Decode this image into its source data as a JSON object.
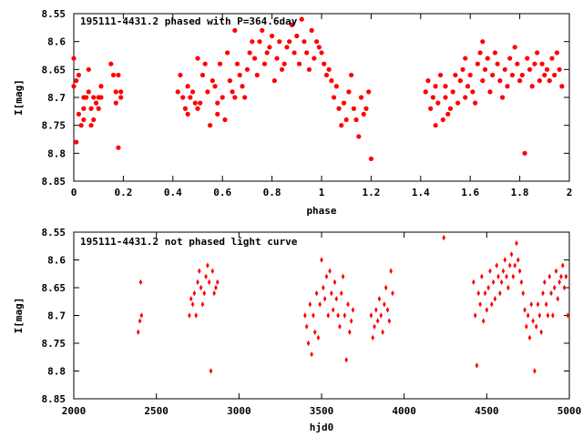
{
  "chart_data": [
    {
      "type": "scatter",
      "title": "195111-4431.2 phased with P=364.6day",
      "xlabel": "phase",
      "ylabel": "I[mag]",
      "xlim": [
        0,
        2
      ],
      "ylim": [
        8.55,
        8.85
      ],
      "y_inverted": true,
      "grid": false,
      "legend": "none",
      "marker_color": "#ff0000",
      "x_ticks": [
        "0",
        "0.2",
        "0.4",
        "0.6",
        "0.8",
        "1",
        "1.2",
        "1.4",
        "1.6",
        "1.8",
        "2"
      ],
      "y_ticks": [
        "8.55",
        "8.6",
        "8.65",
        "8.7",
        "8.75",
        "8.8",
        "8.85"
      ],
      "series": [
        {
          "x": [
            0.0,
            0.0,
            0.01,
            0.01,
            0.02,
            0.02,
            0.03,
            0.04,
            0.04,
            0.04,
            0.05,
            0.06,
            0.06,
            0.07,
            0.07,
            0.08,
            0.08,
            0.09,
            0.1,
            0.1,
            0.11,
            0.11,
            0.15,
            0.16,
            0.17,
            0.17,
            0.18,
            0.18,
            0.19,
            0.19,
            0.42,
            0.43,
            0.44,
            0.45,
            0.46,
            0.46,
            0.47,
            0.48,
            0.49,
            0.5,
            0.5,
            0.51,
            0.52,
            0.53,
            0.54,
            0.55,
            0.56,
            0.57,
            0.58,
            0.58,
            0.59,
            0.6,
            0.61,
            0.62,
            0.63,
            0.64,
            0.65,
            0.65,
            0.66,
            0.67,
            0.68,
            0.69,
            0.7,
            0.71,
            0.72,
            0.73,
            0.74,
            0.75,
            0.76,
            0.77,
            0.78,
            0.79,
            0.8,
            0.81,
            0.82,
            0.83,
            0.84,
            0.85,
            0.86,
            0.87,
            0.88,
            0.89,
            0.9,
            0.91,
            0.92,
            0.93,
            0.94,
            0.95,
            0.96,
            0.97,
            0.98,
            0.99,
            1.0,
            1.01,
            1.02,
            1.03,
            1.04,
            1.05,
            1.06,
            1.07,
            1.08,
            1.09,
            1.1,
            1.11,
            1.12,
            1.13,
            1.14,
            1.15,
            1.16,
            1.17,
            1.18,
            1.19,
            1.2,
            1.42,
            1.43,
            1.44,
            1.45,
            1.46,
            1.46,
            1.47,
            1.48,
            1.49,
            1.5,
            1.5,
            1.51,
            1.52,
            1.53,
            1.54,
            1.55,
            1.56,
            1.57,
            1.58,
            1.58,
            1.59,
            1.6,
            1.61,
            1.62,
            1.63,
            1.64,
            1.65,
            1.65,
            1.66,
            1.67,
            1.68,
            1.69,
            1.7,
            1.71,
            1.72,
            1.73,
            1.74,
            1.75,
            1.76,
            1.77,
            1.78,
            1.79,
            1.8,
            1.81,
            1.82,
            1.83,
            1.84,
            1.85,
            1.86,
            1.87,
            1.88,
            1.89,
            1.9,
            1.91,
            1.92,
            1.93,
            1.94,
            1.95,
            1.96,
            1.97
          ],
          "y": [
            8.68,
            8.63,
            8.67,
            8.78,
            8.73,
            8.66,
            8.75,
            8.7,
            8.72,
            8.74,
            8.7,
            8.65,
            8.69,
            8.72,
            8.75,
            8.7,
            8.74,
            8.71,
            8.7,
            8.72,
            8.68,
            8.7,
            8.64,
            8.66,
            8.69,
            8.71,
            8.79,
            8.66,
            8.7,
            8.69,
            8.69,
            8.66,
            8.7,
            8.72,
            8.73,
            8.68,
            8.7,
            8.69,
            8.71,
            8.63,
            8.72,
            8.71,
            8.66,
            8.64,
            8.69,
            8.75,
            8.67,
            8.68,
            8.71,
            8.73,
            8.64,
            8.7,
            8.74,
            8.62,
            8.67,
            8.69,
            8.7,
            8.58,
            8.64,
            8.66,
            8.68,
            8.7,
            8.65,
            8.62,
            8.6,
            8.63,
            8.66,
            8.6,
            8.58,
            8.64,
            8.62,
            8.61,
            8.59,
            8.67,
            8.63,
            8.6,
            8.65,
            8.64,
            8.61,
            8.6,
            8.57,
            8.62,
            8.59,
            8.64,
            8.56,
            8.6,
            8.62,
            8.65,
            8.58,
            8.63,
            8.6,
            8.61,
            8.62,
            8.64,
            8.66,
            8.65,
            8.67,
            8.7,
            8.68,
            8.72,
            8.75,
            8.71,
            8.74,
            8.69,
            8.66,
            8.72,
            8.74,
            8.77,
            8.7,
            8.73,
            8.72,
            8.69,
            8.81,
            8.69,
            8.67,
            8.72,
            8.7,
            8.75,
            8.68,
            8.71,
            8.66,
            8.74,
            8.7,
            8.68,
            8.73,
            8.72,
            8.69,
            8.66,
            8.71,
            8.67,
            8.65,
            8.7,
            8.63,
            8.68,
            8.66,
            8.69,
            8.71,
            8.64,
            8.62,
            8.67,
            8.6,
            8.65,
            8.63,
            8.69,
            8.66,
            8.62,
            8.64,
            8.67,
            8.7,
            8.65,
            8.68,
            8.63,
            8.66,
            8.61,
            8.64,
            8.67,
            8.66,
            8.8,
            8.63,
            8.65,
            8.68,
            8.64,
            8.62,
            8.67,
            8.64,
            8.66,
            8.65,
            8.67,
            8.63,
            8.66,
            8.62,
            8.65,
            8.68
          ]
        }
      ]
    },
    {
      "type": "scatter",
      "title": "195111-4431.2 not phased light curve",
      "xlabel": "hjd0",
      "ylabel": "I[mag]",
      "xlim": [
        2000,
        5000
      ],
      "ylim": [
        8.55,
        8.85
      ],
      "y_inverted": true,
      "grid": false,
      "legend": "none",
      "marker_color": "#ff0000",
      "x_ticks": [
        "2000",
        "2500",
        "3000",
        "3500",
        "4000",
        "4500",
        "5000"
      ],
      "y_ticks": [
        "8.55",
        "8.6",
        "8.65",
        "8.7",
        "8.75",
        "8.8",
        "8.85"
      ],
      "series": [
        {
          "x": [
            2390,
            2400,
            2405,
            2410,
            2700,
            2710,
            2720,
            2730,
            2740,
            2750,
            2760,
            2770,
            2780,
            2790,
            2800,
            2810,
            2820,
            2830,
            2840,
            2850,
            2860,
            2870,
            3400,
            3410,
            3420,
            3430,
            3440,
            3450,
            3460,
            3470,
            3480,
            3490,
            3500,
            3510,
            3520,
            3530,
            3540,
            3550,
            3560,
            3570,
            3580,
            3590,
            3600,
            3610,
            3620,
            3630,
            3640,
            3650,
            3660,
            3670,
            3680,
            3690,
            3800,
            3810,
            3820,
            3830,
            3840,
            3850,
            3860,
            3870,
            3880,
            3890,
            3900,
            3910,
            3920,
            3930,
            4240,
            4420,
            4430,
            4440,
            4450,
            4460,
            4470,
            4480,
            4490,
            4500,
            4510,
            4520,
            4530,
            4540,
            4550,
            4560,
            4570,
            4580,
            4590,
            4600,
            4610,
            4620,
            4630,
            4640,
            4650,
            4660,
            4670,
            4680,
            4690,
            4700,
            4710,
            4720,
            4730,
            4740,
            4750,
            4760,
            4770,
            4780,
            4790,
            4800,
            4810,
            4820,
            4830,
            4840,
            4850,
            4860,
            4870,
            4880,
            4890,
            4900,
            4910,
            4920,
            4930,
            4940,
            4950,
            4960,
            4970,
            4980,
            4990
          ],
          "y": [
            8.73,
            8.71,
            8.64,
            8.7,
            8.7,
            8.67,
            8.68,
            8.66,
            8.7,
            8.64,
            8.62,
            8.65,
            8.68,
            8.66,
            8.63,
            8.61,
            8.64,
            8.8,
            8.62,
            8.66,
            8.65,
            8.64,
            8.7,
            8.72,
            8.75,
            8.68,
            8.77,
            8.7,
            8.73,
            8.66,
            8.74,
            8.68,
            8.6,
            8.65,
            8.67,
            8.63,
            8.7,
            8.62,
            8.66,
            8.69,
            8.64,
            8.67,
            8.7,
            8.72,
            8.66,
            8.63,
            8.7,
            8.78,
            8.68,
            8.73,
            8.71,
            8.69,
            8.7,
            8.74,
            8.72,
            8.69,
            8.71,
            8.67,
            8.7,
            8.73,
            8.68,
            8.65,
            8.69,
            8.71,
            8.62,
            8.66,
            8.56,
            8.64,
            8.7,
            8.79,
            8.66,
            8.68,
            8.63,
            8.71,
            8.66,
            8.69,
            8.65,
            8.62,
            8.68,
            8.64,
            8.67,
            8.61,
            8.63,
            8.66,
            8.64,
            8.62,
            8.6,
            8.63,
            8.65,
            8.61,
            8.59,
            8.63,
            8.61,
            8.57,
            8.6,
            8.62,
            8.64,
            8.66,
            8.69,
            8.72,
            8.7,
            8.74,
            8.68,
            8.71,
            8.8,
            8.72,
            8.68,
            8.7,
            8.73,
            8.66,
            8.64,
            8.68,
            8.7,
            8.63,
            8.66,
            8.7,
            8.65,
            8.62,
            8.67,
            8.64,
            8.63,
            8.61,
            8.65,
            8.63,
            8.7
          ]
        }
      ]
    }
  ]
}
